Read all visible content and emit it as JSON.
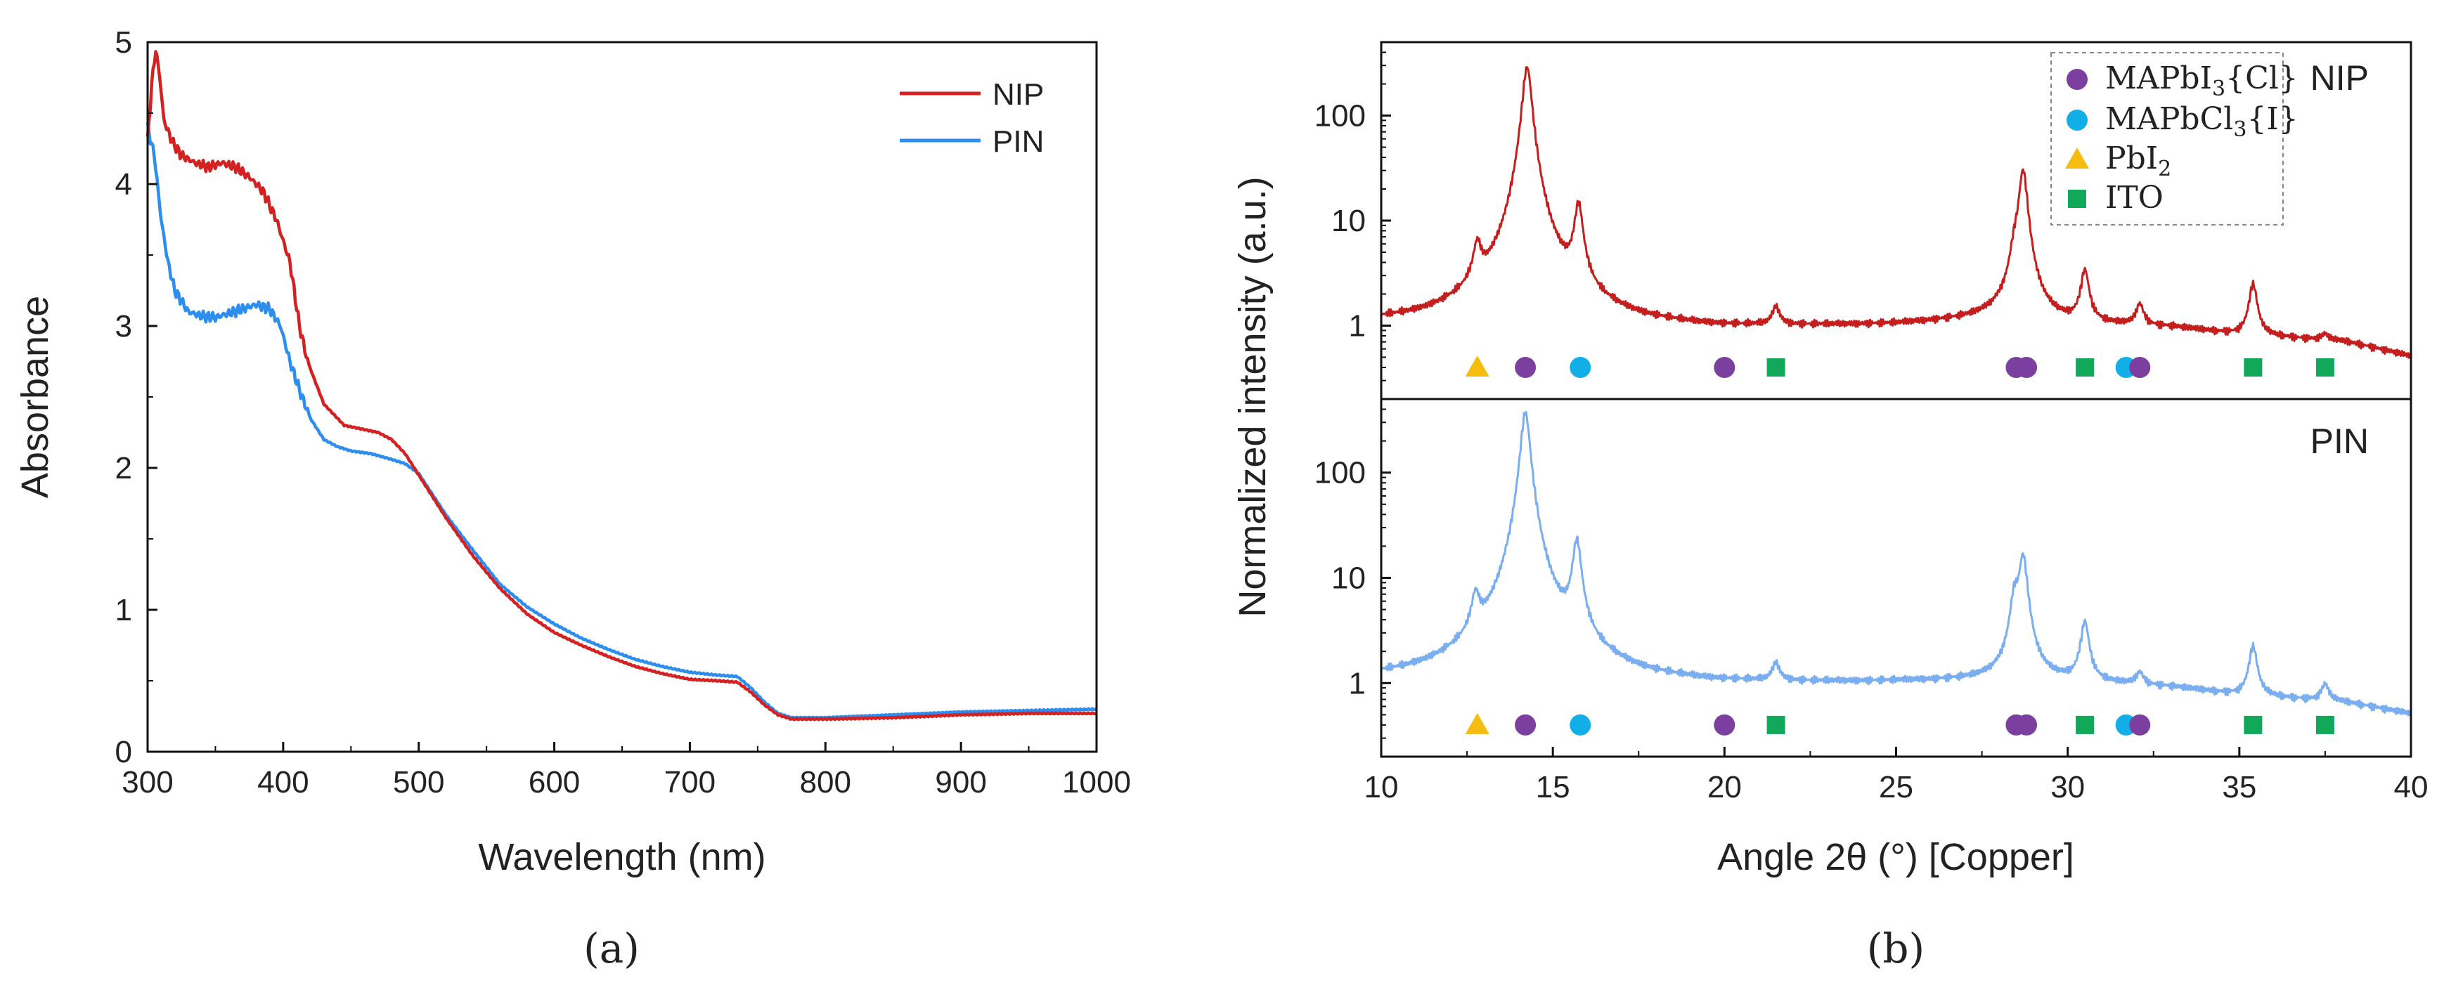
{
  "chart_data": [
    {
      "type": "line",
      "panel_label": "(a)",
      "title": "",
      "xlabel": "Wavelength (nm)",
      "ylabel": "Absorbance",
      "xlim": [
        300,
        1000
      ],
      "ylim": [
        0,
        5
      ],
      "x_ticks": [
        "300",
        "400",
        "500",
        "600",
        "700",
        "800",
        "900",
        "1000"
      ],
      "y_ticks": [
        "0",
        "1",
        "2",
        "3",
        "4",
        "5"
      ],
      "legend_position": "top-right",
      "grid": false,
      "series": [
        {
          "name": "NIP",
          "color": "#d42222",
          "points": [
            [
              300,
              4.3
            ],
            [
              303,
              4.7
            ],
            [
              306,
              4.95
            ],
            [
              309,
              4.75
            ],
            [
              312,
              4.45
            ],
            [
              318,
              4.3
            ],
            [
              325,
              4.2
            ],
            [
              335,
              4.15
            ],
            [
              345,
              4.12
            ],
            [
              355,
              4.15
            ],
            [
              365,
              4.12
            ],
            [
              375,
              4.05
            ],
            [
              385,
              3.95
            ],
            [
              395,
              3.75
            ],
            [
              405,
              3.45
            ],
            [
              412,
              3.0
            ],
            [
              418,
              2.75
            ],
            [
              430,
              2.45
            ],
            [
              445,
              2.3
            ],
            [
              460,
              2.27
            ],
            [
              470,
              2.25
            ],
            [
              480,
              2.2
            ],
            [
              490,
              2.1
            ],
            [
              500,
              1.95
            ],
            [
              520,
              1.65
            ],
            [
              540,
              1.38
            ],
            [
              560,
              1.15
            ],
            [
              580,
              0.97
            ],
            [
              600,
              0.84
            ],
            [
              620,
              0.75
            ],
            [
              640,
              0.67
            ],
            [
              660,
              0.6
            ],
            [
              680,
              0.55
            ],
            [
              700,
              0.51
            ],
            [
              720,
              0.5
            ],
            [
              735,
              0.49
            ],
            [
              745,
              0.42
            ],
            [
              755,
              0.33
            ],
            [
              765,
              0.26
            ],
            [
              775,
              0.23
            ],
            [
              800,
              0.23
            ],
            [
              850,
              0.24
            ],
            [
              900,
              0.26
            ],
            [
              950,
              0.27
            ],
            [
              1000,
              0.27
            ]
          ]
        },
        {
          "name": "PIN",
          "color": "#2d8ef0",
          "points": [
            [
              300,
              4.4
            ],
            [
              305,
              4.2
            ],
            [
              310,
              3.75
            ],
            [
              315,
              3.45
            ],
            [
              320,
              3.25
            ],
            [
              330,
              3.1
            ],
            [
              340,
              3.07
            ],
            [
              350,
              3.06
            ],
            [
              360,
              3.09
            ],
            [
              370,
              3.12
            ],
            [
              380,
              3.15
            ],
            [
              390,
              3.12
            ],
            [
              398,
              3.0
            ],
            [
              405,
              2.75
            ],
            [
              412,
              2.55
            ],
            [
              420,
              2.35
            ],
            [
              430,
              2.2
            ],
            [
              440,
              2.15
            ],
            [
              450,
              2.12
            ],
            [
              465,
              2.1
            ],
            [
              480,
              2.06
            ],
            [
              490,
              2.03
            ],
            [
              500,
              1.96
            ],
            [
              520,
              1.67
            ],
            [
              540,
              1.42
            ],
            [
              560,
              1.18
            ],
            [
              580,
              1.02
            ],
            [
              600,
              0.9
            ],
            [
              620,
              0.8
            ],
            [
              640,
              0.72
            ],
            [
              660,
              0.65
            ],
            [
              680,
              0.6
            ],
            [
              700,
              0.56
            ],
            [
              720,
              0.54
            ],
            [
              735,
              0.53
            ],
            [
              745,
              0.45
            ],
            [
              755,
              0.35
            ],
            [
              765,
              0.27
            ],
            [
              775,
              0.24
            ],
            [
              800,
              0.24
            ],
            [
              850,
              0.26
            ],
            [
              900,
              0.28
            ],
            [
              950,
              0.29
            ],
            [
              1000,
              0.3
            ]
          ]
        }
      ]
    },
    {
      "type": "line",
      "panel_label": "(b)",
      "title": "",
      "xlabel": "Angle 2θ (°) [Copper]",
      "ylabel": "Normalized intensity (a.u.)",
      "xlim": [
        10,
        40
      ],
      "x_ticks": [
        "10",
        "15",
        "20",
        "25",
        "30",
        "35",
        "40"
      ],
      "yscale": "log",
      "grid": false,
      "legend_position": "top-right",
      "legend": [
        {
          "label": "MAPbI",
          "sub": "3",
          "suffix": "{Cl}",
          "marker": "circle",
          "color": "#7b3fa0"
        },
        {
          "label": "MAPbCl",
          "sub": "3",
          "suffix": "{I}",
          "marker": "circle",
          "color": "#12aee8"
        },
        {
          "label": "PbI",
          "sub": "2",
          "suffix": "",
          "marker": "triangle",
          "color": "#f5bd10"
        },
        {
          "label": "ITO",
          "sub": "",
          "suffix": "",
          "marker": "square",
          "color": "#12a85a"
        }
      ],
      "reflections": [
        {
          "x": 12.8,
          "phase": "PbI2"
        },
        {
          "x": 14.2,
          "phase": "MAPbI3{Cl}"
        },
        {
          "x": 15.8,
          "phase": "MAPbCl3{I}"
        },
        {
          "x": 20.0,
          "phase": "MAPbI3{Cl}"
        },
        {
          "x": 21.5,
          "phase": "ITO"
        },
        {
          "x": 28.5,
          "phase": "MAPbI3{Cl}"
        },
        {
          "x": 28.8,
          "phase": "MAPbI3{Cl}"
        },
        {
          "x": 30.5,
          "phase": "ITO"
        },
        {
          "x": 31.7,
          "phase": "MAPbCl3{I}"
        },
        {
          "x": 32.1,
          "phase": "MAPbI3{Cl}"
        },
        {
          "x": 35.4,
          "phase": "ITO"
        },
        {
          "x": 37.5,
          "phase": "ITO"
        }
      ],
      "subplots": [
        {
          "label": "NIP",
          "color": "#c41e1e",
          "ylim": [
            0.2,
            500
          ],
          "y_ticks": [
            1,
            10,
            100
          ],
          "y_tick_labels": [
            "1",
            "10",
            "100"
          ],
          "baseline": [
            [
              10,
              1.0
            ],
            [
              15,
              0.92
            ],
            [
              18,
              0.9
            ],
            [
              20,
              0.9
            ],
            [
              25,
              1.0
            ],
            [
              28,
              1.15
            ],
            [
              30,
              1.0
            ],
            [
              33,
              0.95
            ],
            [
              35,
              0.8
            ],
            [
              38,
              0.7
            ],
            [
              40,
              0.5
            ]
          ],
          "peaks": [
            [
              12.8,
              4.5
            ],
            [
              14.25,
              290
            ],
            [
              15.75,
              13
            ],
            [
              21.5,
              1.5
            ],
            [
              28.45,
              3.5
            ],
            [
              28.7,
              30
            ],
            [
              30.5,
              3.3
            ],
            [
              32.1,
              1.6
            ],
            [
              35.4,
              2.7
            ],
            [
              37.5,
              1.1
            ]
          ]
        },
        {
          "label": "PIN",
          "color": "#7aaef0",
          "ylim": [
            0.2,
            500
          ],
          "y_ticks": [
            1,
            10,
            100
          ],
          "y_tick_labels": [
            "1",
            "10",
            "100"
          ],
          "baseline": [
            [
              10,
              1.0
            ],
            [
              15,
              0.9
            ],
            [
              18,
              0.9
            ],
            [
              20,
              0.92
            ],
            [
              25,
              1.0
            ],
            [
              28,
              1.05
            ],
            [
              30,
              1.0
            ],
            [
              33,
              0.9
            ],
            [
              35,
              0.75
            ],
            [
              38,
              0.65
            ],
            [
              40,
              0.5
            ]
          ],
          "peaks": [
            [
              12.75,
              5
            ],
            [
              14.2,
              370
            ],
            [
              15.7,
              21
            ],
            [
              20.0,
              1.0
            ],
            [
              21.5,
              1.5
            ],
            [
              28.45,
              6
            ],
            [
              28.7,
              16
            ],
            [
              30.5,
              3.8
            ],
            [
              32.1,
              1.3
            ],
            [
              35.4,
              2.5
            ],
            [
              37.5,
              1.3
            ]
          ]
        }
      ]
    }
  ]
}
